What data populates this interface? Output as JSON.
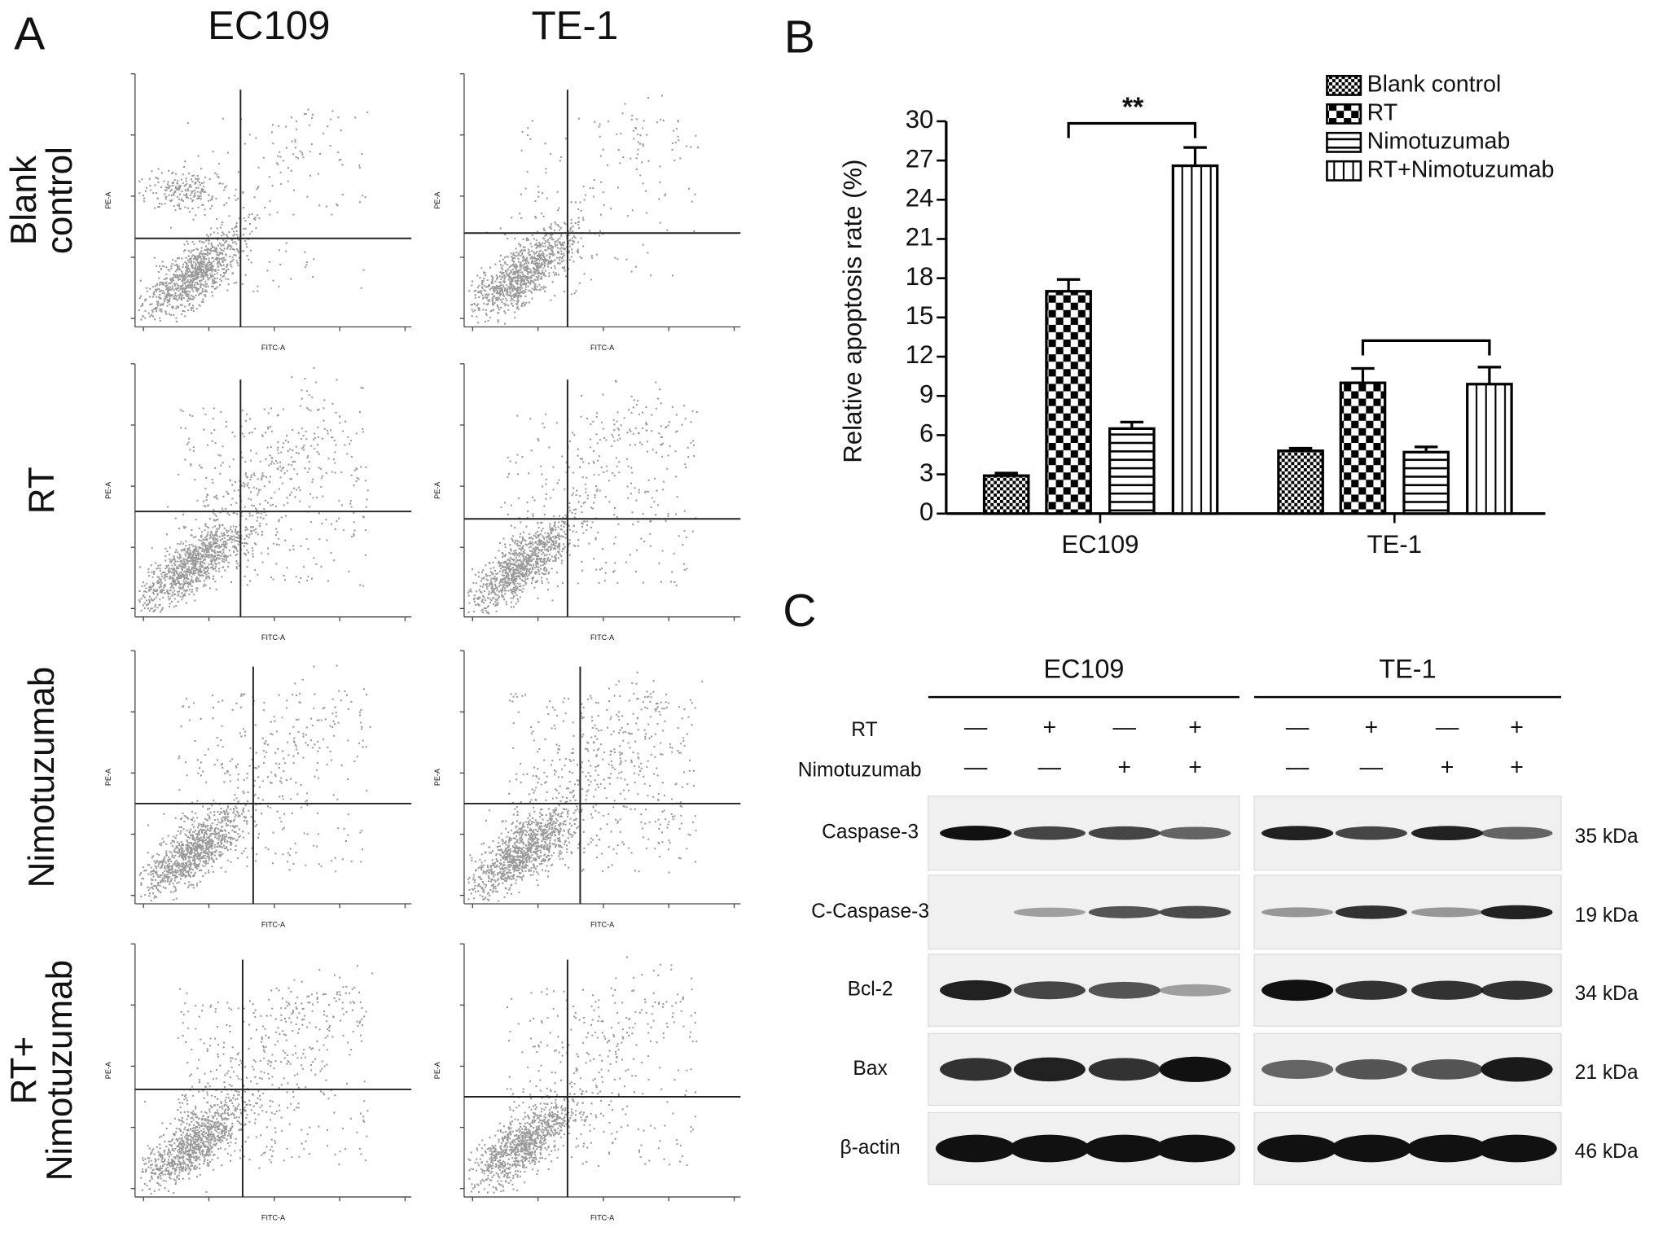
{
  "panel_labels": [
    "A",
    "B",
    "C"
  ],
  "flow_cytometry": {
    "columns": [
      "EC109",
      "TE-1"
    ],
    "rows": [
      [
        "Blank",
        "control"
      ],
      [
        "RT"
      ],
      [
        "Nimotuzumab"
      ],
      [
        "RT+",
        "Nimotuzumab"
      ]
    ],
    "x_axis_label": "FITC-A",
    "y_axis_label": "PE-A"
  },
  "chart_data": {
    "type": "bar",
    "ylabel": "Relative apoptosis rate (%)",
    "categories": [
      "EC109",
      "TE-1"
    ],
    "series": [
      {
        "name": "Blank control",
        "color": "#000000",
        "pattern": "fine-checker",
        "values": [
          2.9,
          4.8
        ],
        "errors": [
          0.2,
          0.2
        ]
      },
      {
        "name": "RT",
        "color": "#000000",
        "pattern": "checker",
        "values": [
          17.0,
          10.0
        ],
        "errors": [
          0.9,
          1.1
        ]
      },
      {
        "name": "Nimotuzumab",
        "color": "#000000",
        "pattern": "horizontal-lines",
        "values": [
          6.5,
          4.7
        ],
        "errors": [
          0.5,
          0.4
        ]
      },
      {
        "name": "RT+Nimotuzumab",
        "color": "#000000",
        "pattern": "vertical-lines",
        "values": [
          26.6,
          9.9
        ],
        "errors": [
          1.4,
          1.3
        ]
      }
    ],
    "ylim": [
      0,
      30
    ],
    "yticks": [
      0,
      3,
      6,
      9,
      12,
      15,
      18,
      21,
      24,
      27,
      30
    ],
    "annotations": [
      "**"
    ],
    "legend": "top-right"
  },
  "western_blot": {
    "groups": [
      "EC109",
      "TE-1"
    ],
    "treatments": [
      {
        "name": "RT",
        "signs": [
          "—",
          "+",
          "—",
          "+",
          "—",
          "+",
          "—",
          "+"
        ]
      },
      {
        "name": "Nimotuzumab",
        "signs": [
          "—",
          "—",
          "+",
          "+",
          "—",
          "—",
          "+",
          "+"
        ]
      }
    ],
    "proteins": [
      {
        "name": "Caspase-3",
        "size": "35 kDa"
      },
      {
        "name": "C-Caspase-3",
        "size": "19 kDa"
      },
      {
        "name": "Bcl-2",
        "size": "34 kDa"
      },
      {
        "name": "Bax",
        "size": "21 kDa"
      },
      {
        "name": "β-actin",
        "size": "46 kDa"
      }
    ]
  }
}
